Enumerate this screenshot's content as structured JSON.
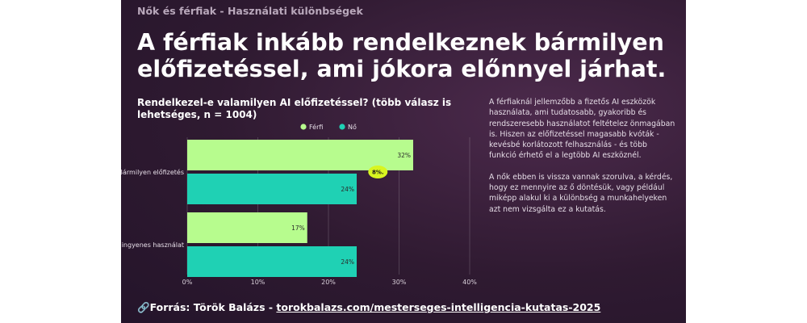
{
  "slide": {
    "kicker": "Nők és férfiak - Használati különbségek",
    "headline": "A férfiak inkább rendelkeznek bármilyen előfizetéssel, ami jókora előnnyel járhat.",
    "body_paragraphs": [
      "A férfiaknál jellemzőbb a fizetős AI eszközök használata, ami tudatosabb, gyakoribb és rendszeresebb használatot feltételez önmagában is. Hiszen az előfizetéssel magasabb kvóták - kevésbé korlátozott felhasználás - és több funkció érhető el a legtöbb AI eszköznél.",
      "A nők ebben is vissza vannak szorulva, a kérdés, hogy ez mennyire az ő döntésük, vagy például miképp alakul ki a különbség a munkahelyeken azt nem vizsgálta ez a kutatás."
    ],
    "source_prefix": "Forrás: Török Balázs - ",
    "source_link": "torokbalazs.com/mesterseges-intelligencia-kutatas-2025",
    "link_icon": "link-icon"
  },
  "chart_data": {
    "type": "bar",
    "orientation": "horizontal",
    "title": "Rendelkezel-e valamilyen AI előfizetéssel? (több válasz is lehetséges, n = 1004)",
    "categories": [
      "Bármilyen előfizetés",
      "Csak ingyenes használat"
    ],
    "series": [
      {
        "name": "Férfi",
        "values": [
          32,
          17
        ],
        "color": "#b7fc8e",
        "data_labels": [
          "32%",
          "17%"
        ]
      },
      {
        "name": "Nő",
        "values": [
          24,
          24
        ],
        "color": "#1fd1b4",
        "data_labels": [
          "24%",
          "24%"
        ]
      }
    ],
    "xlim": [
      0,
      40
    ],
    "x_ticks": [
      0,
      10,
      20,
      30,
      40
    ],
    "x_tick_labels": [
      "0%",
      "10%",
      "20%",
      "30%",
      "40%"
    ],
    "grid": "vertical",
    "legend_position": "top-center",
    "annotations": [
      {
        "text": "8%.",
        "category": "Bármilyen előfizetés",
        "x_value": 27,
        "color": "#d8f520"
      }
    ]
  }
}
